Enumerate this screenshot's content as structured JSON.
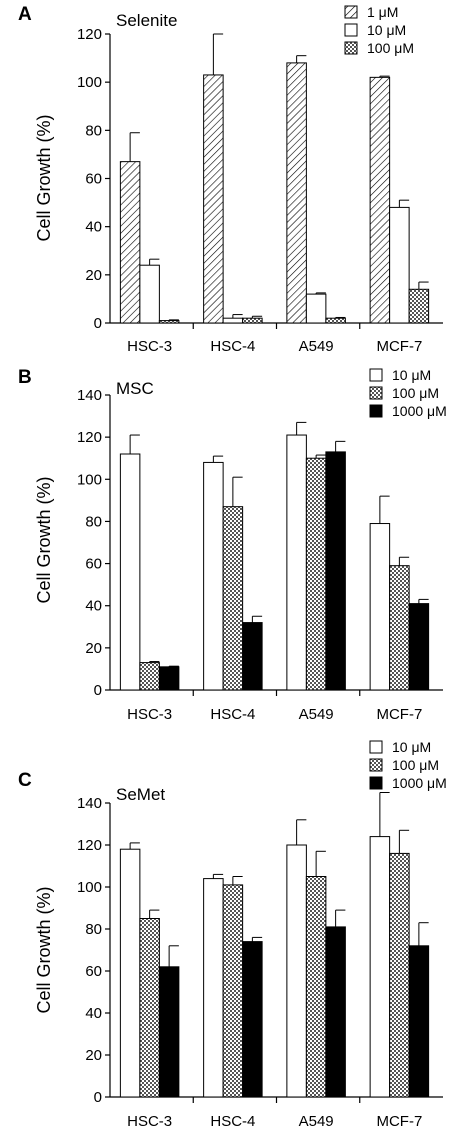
{
  "colors": {
    "open": "#ffffff",
    "solid": "#000000",
    "stroke": "#000000"
  },
  "chart_data": [
    {
      "type": "bar",
      "panel_label": "A",
      "title": "Selenite",
      "ylabel": "Cell Growth (%)",
      "xlabel": "",
      "ylim": [
        0,
        120
      ],
      "yticks": [
        "0",
        "20",
        "40",
        "60",
        "80",
        "100",
        "120"
      ],
      "categories": [
        "HSC-3",
        "HSC-4",
        "A549",
        "MCF-7"
      ],
      "legend_position": "top-right",
      "series": [
        {
          "name": "1 μM",
          "pattern": "hatch",
          "values": [
            67,
            103,
            108,
            102
          ],
          "errors": [
            12,
            17,
            3,
            0.5
          ]
        },
        {
          "name": "10 μM",
          "pattern": "open",
          "values": [
            24,
            2,
            12,
            48
          ],
          "errors": [
            2.5,
            1.5,
            0.5,
            3
          ]
        },
        {
          "name": "100 μM",
          "pattern": "cross",
          "values": [
            1,
            2,
            2,
            14
          ],
          "errors": [
            0.3,
            0.8,
            0.3,
            3
          ]
        }
      ]
    },
    {
      "type": "bar",
      "panel_label": "B",
      "title": "MSC",
      "ylabel": "Cell Growth (%)",
      "xlabel": "",
      "ylim": [
        0,
        140
      ],
      "yticks": [
        "0",
        "20",
        "40",
        "60",
        "80",
        "100",
        "120",
        "140"
      ],
      "categories": [
        "HSC-3",
        "HSC-4",
        "A549",
        "MCF-7"
      ],
      "legend_position": "top-right",
      "series": [
        {
          "name": "10 μM",
          "pattern": "open",
          "values": [
            112,
            108,
            121,
            79
          ],
          "errors": [
            9,
            3,
            6,
            13
          ]
        },
        {
          "name": "100 μM",
          "pattern": "cross",
          "values": [
            13,
            87,
            110,
            59
          ],
          "errors": [
            0.5,
            14,
            1.5,
            4
          ]
        },
        {
          "name": "1000 μM",
          "pattern": "solid",
          "values": [
            11,
            32,
            113,
            41
          ],
          "errors": [
            0.3,
            3,
            5,
            2
          ]
        }
      ]
    },
    {
      "type": "bar",
      "panel_label": "C",
      "title": "SeMet",
      "ylabel": "Cell Growth (%)",
      "xlabel": "",
      "ylim": [
        0,
        140
      ],
      "yticks": [
        "0",
        "20",
        "40",
        "60",
        "80",
        "100",
        "120",
        "140"
      ],
      "categories": [
        "HSC-3",
        "HSC-4",
        "A549",
        "MCF-7"
      ],
      "legend_position": "top-right",
      "series": [
        {
          "name": "10 μM",
          "pattern": "open",
          "values": [
            118,
            104,
            120,
            124
          ],
          "errors": [
            3,
            2,
            12,
            21
          ]
        },
        {
          "name": "100 μM",
          "pattern": "cross",
          "values": [
            85,
            101,
            105,
            116
          ],
          "errors": [
            4,
            4,
            12,
            11
          ]
        },
        {
          "name": "1000 μM",
          "pattern": "solid",
          "values": [
            62,
            74,
            81,
            72
          ],
          "errors": [
            10,
            2,
            8,
            11
          ]
        }
      ]
    }
  ]
}
